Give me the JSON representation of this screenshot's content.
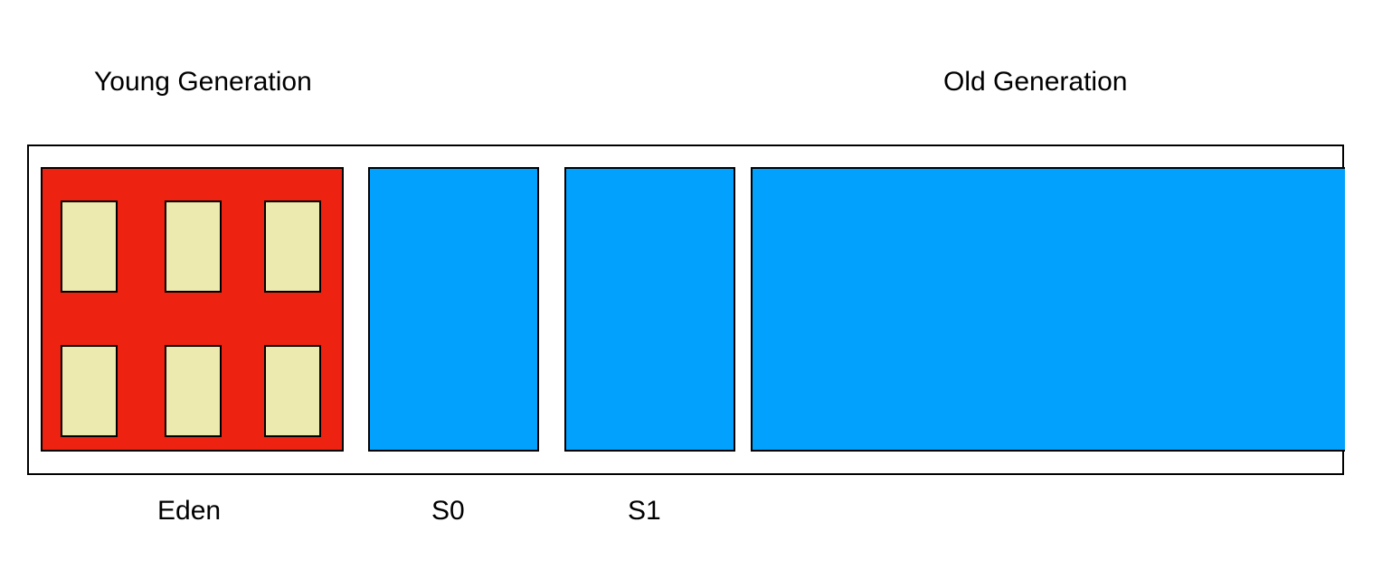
{
  "labels": {
    "young_generation": "Young Generation",
    "old_generation": "Old Generation",
    "eden": "Eden",
    "s0": "S0",
    "s1": "S1"
  },
  "colors": {
    "eden_fill": "#EE2210",
    "survivor_fill": "#03A1FE",
    "old_fill": "#03A1FE",
    "object_fill": "#ECEAAF",
    "border": "#000000",
    "background": "#FFFFFF"
  },
  "eden_objects": {
    "rows": 2,
    "columns": 3
  }
}
